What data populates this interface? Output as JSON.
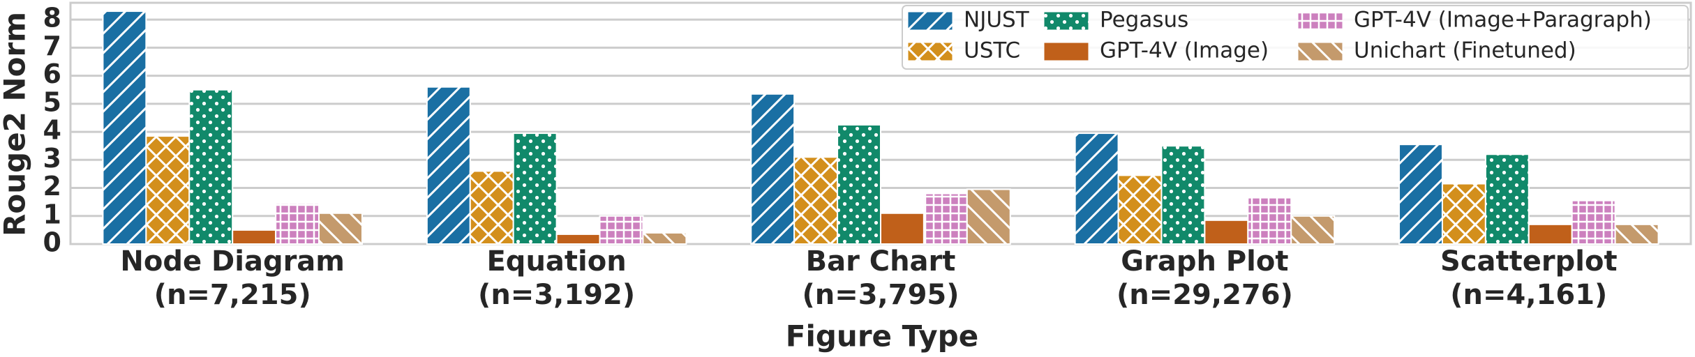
{
  "chart_data": {
    "type": "bar",
    "x_label": "Figure Type",
    "y_label": "Rouge2 Norm",
    "categories": [
      "Node Diagram",
      "Equation",
      "Bar Chart",
      "Graph Plot",
      "Scatterplot"
    ],
    "category_counts": [
      "(n=7,215)",
      "(n=3,192)",
      "(n=3,795)",
      "(n=29,276)",
      "(n=4,161)"
    ],
    "series": [
      {
        "name": "NJUST",
        "color": "#1a6fa3",
        "hatch": "slash",
        "values": [
          8.3,
          5.6,
          5.35,
          3.95,
          3.55
        ]
      },
      {
        "name": "USTC",
        "color": "#d38f1c",
        "hatch": "cross",
        "values": [
          3.85,
          2.6,
          3.1,
          2.45,
          2.15
        ]
      },
      {
        "name": "Pegasus",
        "color": "#11896a",
        "hatch": "dots",
        "values": [
          5.5,
          3.95,
          4.25,
          3.5,
          3.2
        ]
      },
      {
        "name": "GPT-4V (Image)",
        "color": "#c0601a",
        "hatch": "none",
        "values": [
          0.5,
          0.35,
          1.1,
          0.85,
          0.7
        ]
      },
      {
        "name": "GPT-4V (Image+Paragraph)",
        "color": "#cc80be",
        "hatch": "plus",
        "values": [
          1.45,
          1.0,
          1.8,
          1.65,
          1.55
        ]
      },
      {
        "name": "Unichart (Finetuned)",
        "color": "#c49a6c",
        "hatch": "backslash",
        "values": [
          1.1,
          0.4,
          1.95,
          1.0,
          0.7
        ]
      }
    ],
    "ylim": [
      0,
      8.6
    ],
    "yticks": [
      0,
      1,
      2,
      3,
      4,
      5,
      6,
      7,
      8
    ],
    "grid": true,
    "legend": "upper right"
  }
}
